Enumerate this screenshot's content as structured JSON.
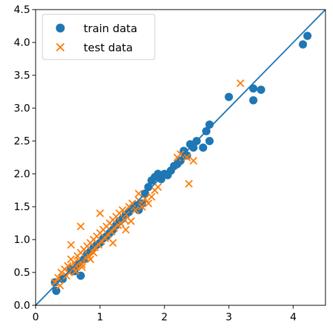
{
  "chart_data": {
    "type": "scatter",
    "title": "",
    "xlabel": "",
    "ylabel": "",
    "xlim": [
      0,
      4.5
    ],
    "ylim": [
      0,
      4.5
    ],
    "x_ticks": [
      {
        "value": 0,
        "label": "0"
      },
      {
        "value": 1,
        "label": "1"
      },
      {
        "value": 2,
        "label": "2"
      },
      {
        "value": 3,
        "label": "3"
      },
      {
        "value": 4,
        "label": "4"
      }
    ],
    "y_ticks": [
      {
        "value": 0.0,
        "label": "0.0"
      },
      {
        "value": 0.5,
        "label": "0.5"
      },
      {
        "value": 1.0,
        "label": "1.0"
      },
      {
        "value": 1.5,
        "label": "1.5"
      },
      {
        "value": 2.0,
        "label": "2.0"
      },
      {
        "value": 2.5,
        "label": "2.5"
      },
      {
        "value": 3.0,
        "label": "3.0"
      },
      {
        "value": 3.5,
        "label": "3.5"
      },
      {
        "value": 4.0,
        "label": "4.0"
      },
      {
        "value": 4.5,
        "label": "4.5"
      }
    ],
    "grid": false,
    "legend_position": "top-left",
    "reference_line": {
      "points": [
        [
          0,
          0
        ],
        [
          4.5,
          4.5
        ]
      ],
      "color": "#1f77b4"
    },
    "series": [
      {
        "name": "train data",
        "marker": "circle",
        "color": "#1f77b4",
        "points": [
          [
            0.32,
            0.22
          ],
          [
            0.3,
            0.35
          ],
          [
            0.42,
            0.4
          ],
          [
            0.7,
            0.45
          ],
          [
            0.55,
            0.55
          ],
          [
            0.6,
            0.52
          ],
          [
            0.65,
            0.62
          ],
          [
            0.75,
            0.7
          ],
          [
            0.8,
            0.78
          ],
          [
            0.85,
            0.82
          ],
          [
            0.9,
            0.88
          ],
          [
            0.95,
            0.92
          ],
          [
            1.0,
            0.95
          ],
          [
            1.05,
            1.02
          ],
          [
            1.1,
            1.05
          ],
          [
            1.15,
            1.1
          ],
          [
            1.2,
            1.15
          ],
          [
            1.25,
            1.22
          ],
          [
            1.3,
            1.28
          ],
          [
            1.35,
            1.32
          ],
          [
            1.4,
            1.38
          ],
          [
            1.45,
            1.42
          ],
          [
            1.5,
            1.48
          ],
          [
            1.55,
            1.52
          ],
          [
            1.6,
            1.45
          ],
          [
            1.65,
            1.55
          ],
          [
            1.7,
            1.7
          ],
          [
            1.75,
            1.8
          ],
          [
            1.8,
            1.9
          ],
          [
            1.85,
            1.95
          ],
          [
            1.9,
            2.0
          ],
          [
            1.95,
            1.92
          ],
          [
            2.0,
            2.0
          ],
          [
            2.05,
            1.98
          ],
          [
            2.1,
            2.05
          ],
          [
            2.15,
            2.12
          ],
          [
            2.2,
            2.15
          ],
          [
            2.25,
            2.2
          ],
          [
            2.3,
            2.35
          ],
          [
            2.35,
            2.28
          ],
          [
            2.4,
            2.45
          ],
          [
            2.45,
            2.4
          ],
          [
            2.5,
            2.5
          ],
          [
            2.6,
            2.4
          ],
          [
            2.65,
            2.65
          ],
          [
            2.7,
            2.5
          ],
          [
            2.7,
            2.75
          ],
          [
            3.0,
            3.17
          ],
          [
            3.38,
            3.12
          ],
          [
            3.38,
            3.3
          ],
          [
            3.5,
            3.28
          ],
          [
            4.15,
            3.97
          ],
          [
            4.22,
            4.1
          ]
        ]
      },
      {
        "name": "test data",
        "marker": "x",
        "color": "#ff7f0e",
        "points": [
          [
            0.3,
            0.35
          ],
          [
            0.35,
            0.42
          ],
          [
            0.38,
            0.3
          ],
          [
            0.4,
            0.5
          ],
          [
            0.45,
            0.55
          ],
          [
            0.48,
            0.45
          ],
          [
            0.5,
            0.6
          ],
          [
            0.52,
            0.5
          ],
          [
            0.55,
            0.7
          ],
          [
            0.58,
            0.58
          ],
          [
            0.6,
            0.65
          ],
          [
            0.62,
            0.52
          ],
          [
            0.65,
            0.75
          ],
          [
            0.68,
            0.68
          ],
          [
            0.7,
            0.8
          ],
          [
            0.72,
            0.62
          ],
          [
            0.75,
            0.85
          ],
          [
            0.78,
            0.72
          ],
          [
            0.8,
            0.9
          ],
          [
            0.82,
            0.75
          ],
          [
            0.85,
            0.95
          ],
          [
            0.88,
            0.82
          ],
          [
            0.9,
            1.0
          ],
          [
            0.92,
            0.88
          ],
          [
            0.95,
            1.05
          ],
          [
            0.98,
            0.92
          ],
          [
            1.0,
            1.1
          ],
          [
            1.02,
            0.98
          ],
          [
            1.05,
            1.15
          ],
          [
            1.08,
            1.02
          ],
          [
            1.1,
            1.2
          ],
          [
            1.12,
            1.08
          ],
          [
            1.15,
            1.25
          ],
          [
            1.18,
            1.12
          ],
          [
            1.2,
            1.3
          ],
          [
            1.22,
            1.18
          ],
          [
            1.25,
            1.35
          ],
          [
            1.28,
            1.22
          ],
          [
            1.3,
            1.4
          ],
          [
            1.32,
            1.25
          ],
          [
            1.35,
            1.45
          ],
          [
            1.38,
            1.3
          ],
          [
            1.4,
            1.38
          ],
          [
            1.45,
            1.5
          ],
          [
            1.48,
            1.28
          ],
          [
            1.5,
            1.55
          ],
          [
            1.55,
            1.45
          ],
          [
            1.6,
            1.6
          ],
          [
            1.65,
            1.5
          ],
          [
            1.7,
            1.62
          ],
          [
            1.75,
            1.55
          ],
          [
            1.8,
            1.65
          ],
          [
            1.85,
            1.75
          ],
          [
            1.9,
            1.8
          ],
          [
            0.7,
            1.2
          ],
          [
            1.0,
            1.4
          ],
          [
            0.55,
            0.92
          ],
          [
            1.2,
            0.95
          ],
          [
            1.4,
            1.15
          ],
          [
            1.6,
            1.7
          ],
          [
            2.2,
            2.25
          ],
          [
            2.25,
            2.3
          ],
          [
            2.35,
            2.25
          ],
          [
            2.45,
            2.2
          ],
          [
            2.38,
            1.85
          ],
          [
            3.18,
            3.38
          ],
          [
            0.62,
            0.6
          ],
          [
            0.72,
            0.58
          ],
          [
            0.85,
            0.7
          ],
          [
            0.9,
            0.8
          ]
        ]
      }
    ]
  }
}
